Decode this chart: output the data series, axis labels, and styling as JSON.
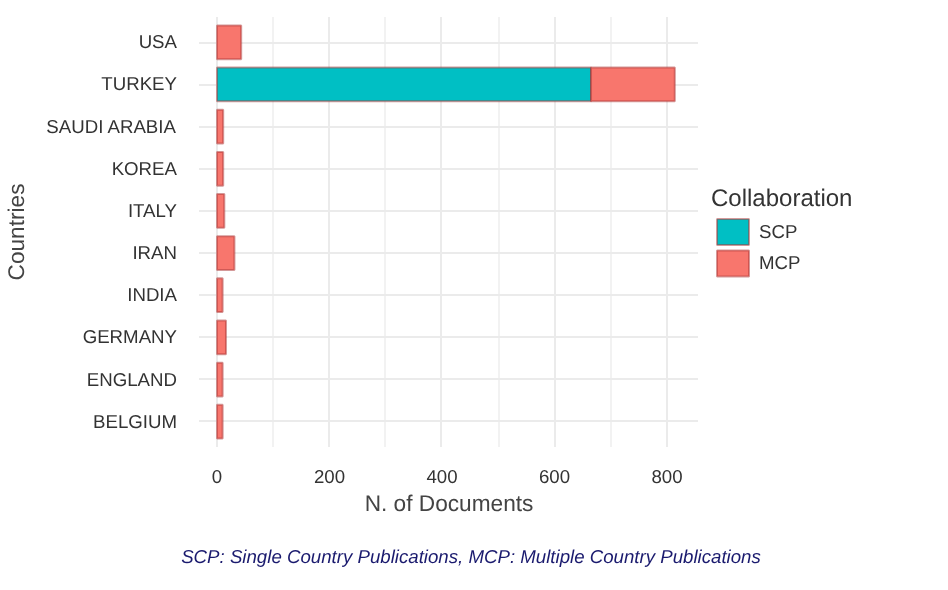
{
  "chart_data": {
    "type": "bar",
    "orientation": "horizontal",
    "stacked": true,
    "xlabel": "N. of Documents",
    "ylabel": "Countries",
    "legend_title": "Collaboration",
    "legend": "right",
    "categories": [
      "USA",
      "TURKEY",
      "SAUDI ARABIA",
      "KOREA",
      "ITALY",
      "IRAN",
      "INDIA",
      "GERMANY",
      "ENGLAND",
      "BELGIUM"
    ],
    "series": [
      {
        "name": "SCP",
        "color": "#00bfc4",
        "values": [
          0,
          665,
          0,
          0,
          0,
          0,
          0,
          0,
          0,
          0
        ]
      },
      {
        "name": "MCP",
        "color": "#f8766d",
        "values": [
          43,
          149,
          11,
          11,
          13,
          31,
          10,
          16,
          10,
          10
        ]
      }
    ],
    "xlim": [
      -32,
      857
    ],
    "xticks": [
      0,
      200,
      400,
      600,
      800
    ],
    "grid": true,
    "annotations": [
      "SCP: Single Country Publications, MCP: Multiple Country Publications"
    ]
  }
}
